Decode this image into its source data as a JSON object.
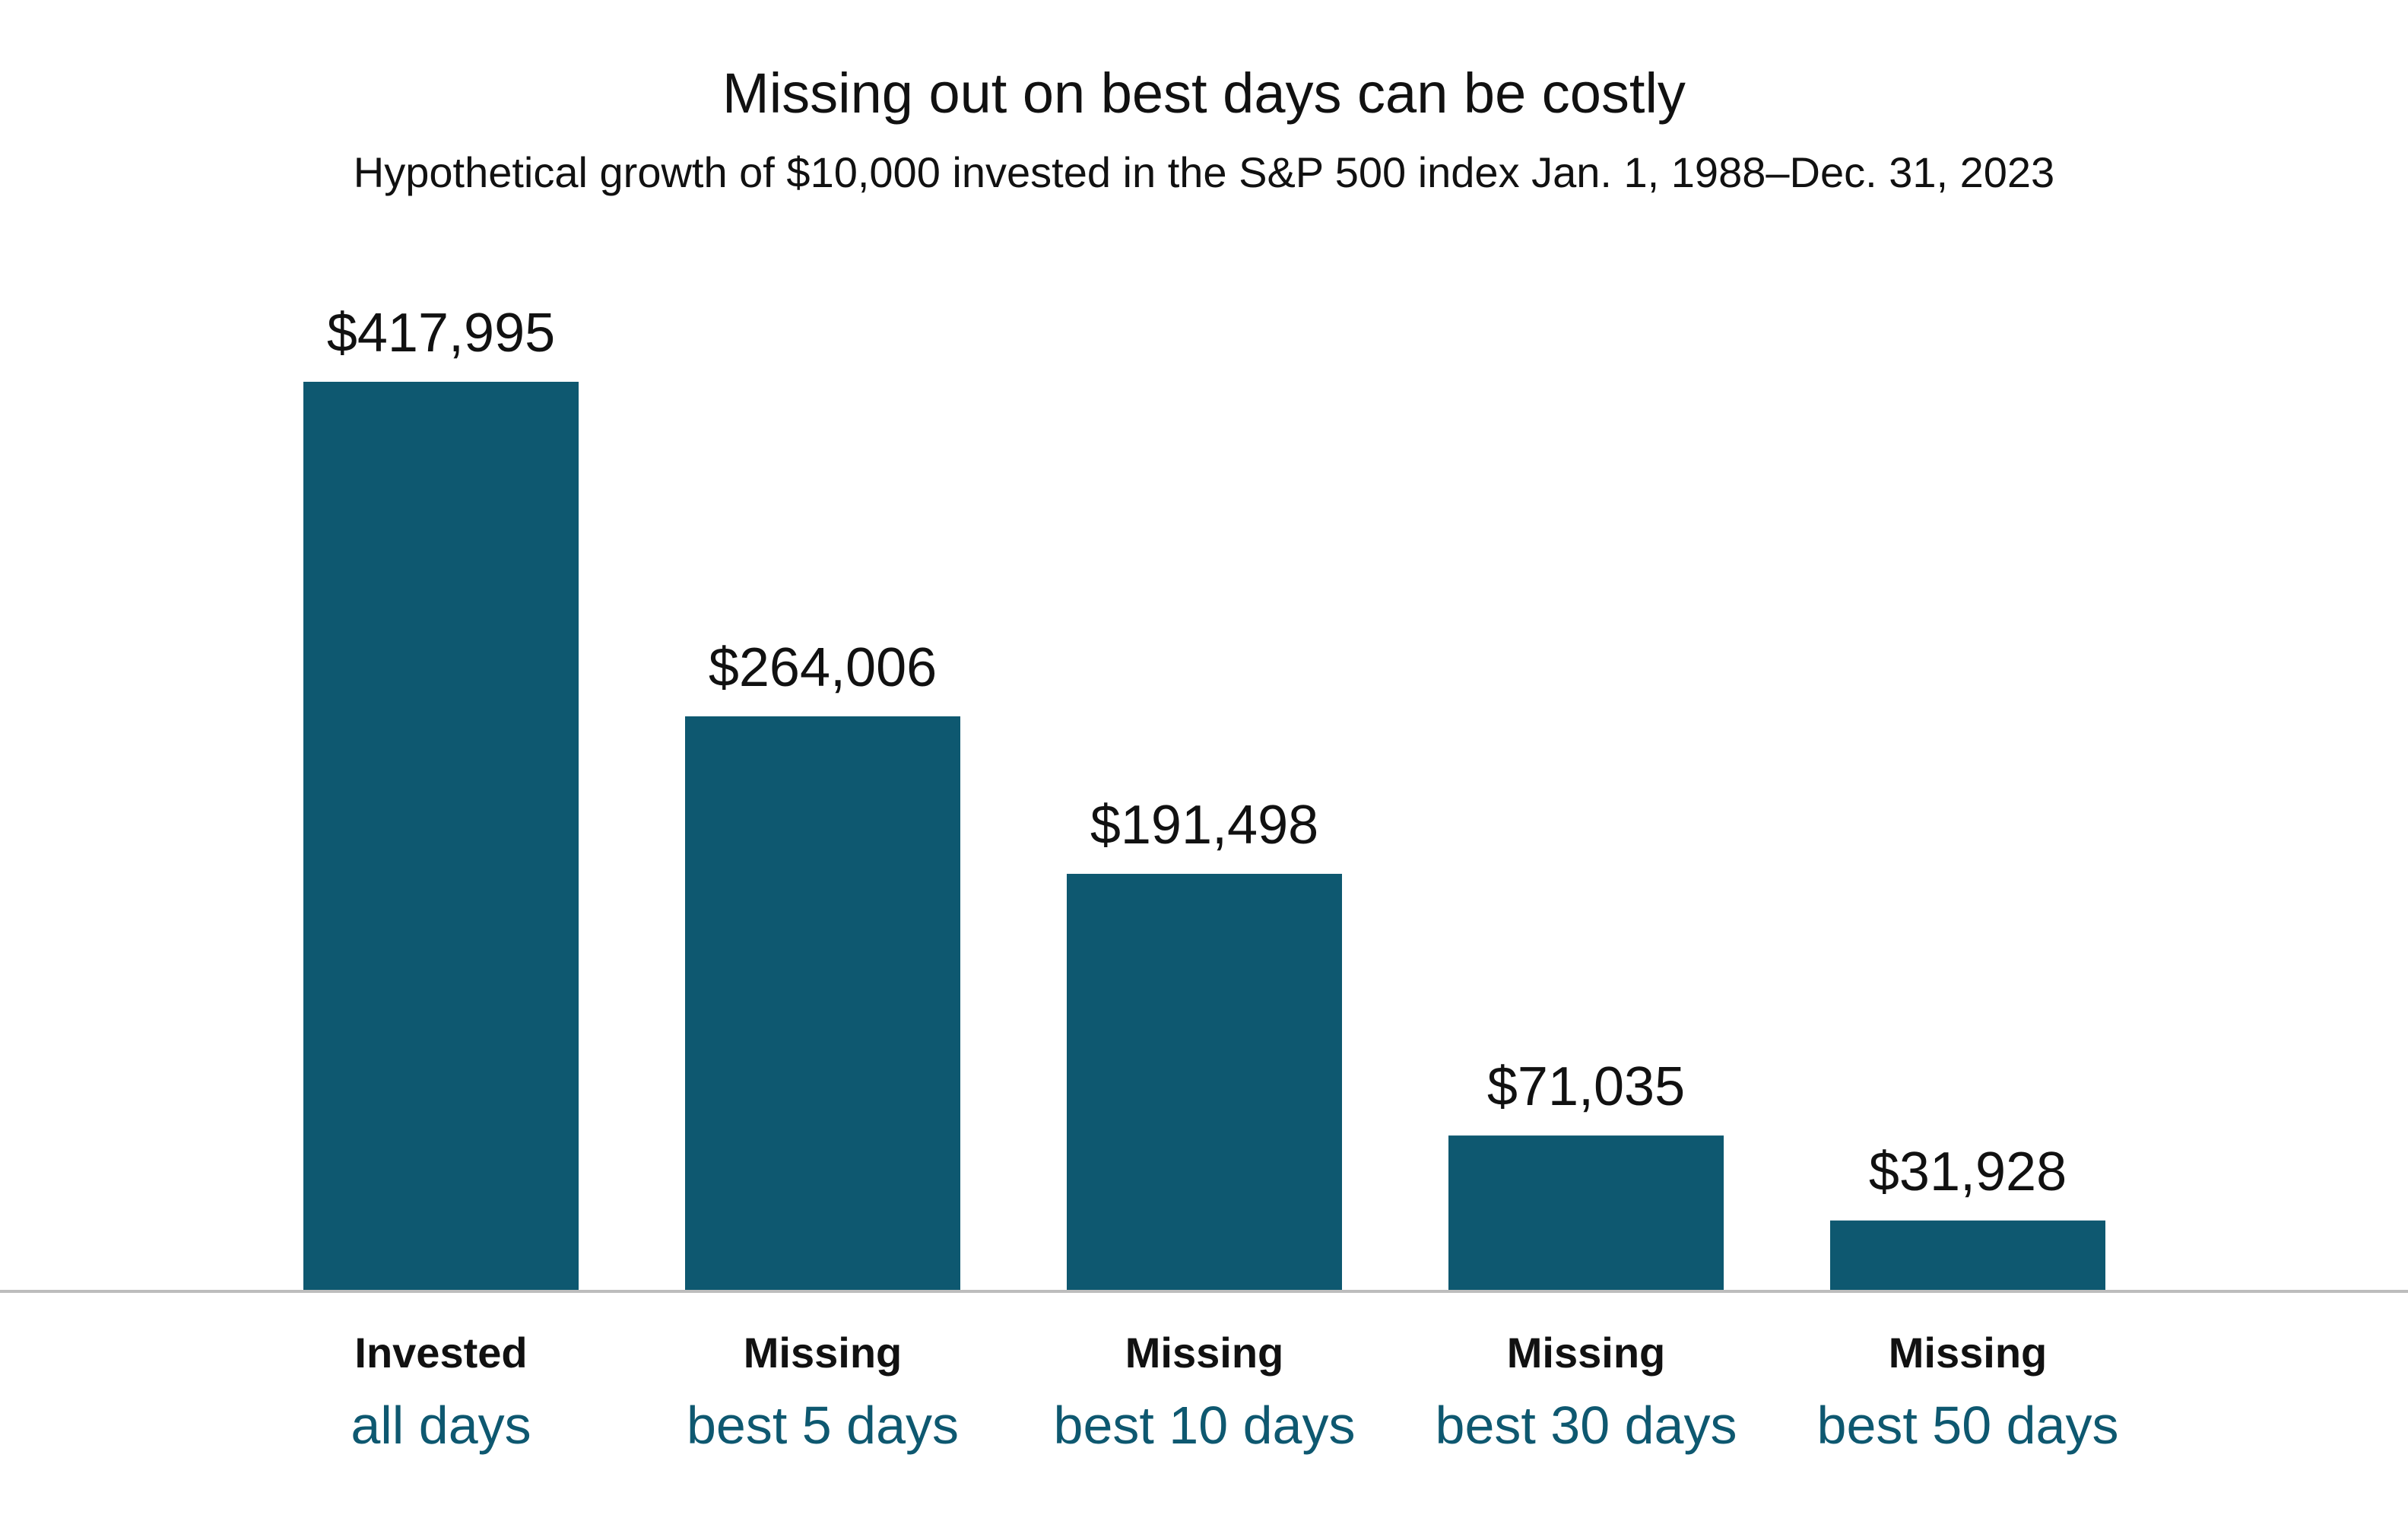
{
  "chart_data": {
    "type": "bar",
    "title": "Missing out on best days can be costly",
    "subtitle": "Hypothetical growth of $10,000 invested in the S&P 500 index Jan. 1, 1988–Dec. 31, 2023",
    "categories": [
      {
        "line1": "Invested",
        "line2": "all days"
      },
      {
        "line1": "Missing",
        "line2": "best 5 days"
      },
      {
        "line1": "Missing",
        "line2": "best 10 days"
      },
      {
        "line1": "Missing",
        "line2": "best 30 days"
      },
      {
        "line1": "Missing",
        "line2": "best 50 days"
      }
    ],
    "values": [
      417995,
      264006,
      191498,
      71035,
      31928
    ],
    "value_labels": [
      "$417,995",
      "$264,006",
      "$191,498",
      "$71,035",
      "$31,928"
    ],
    "xlabel": "",
    "ylabel": "",
    "ylim": [
      0,
      417995
    ],
    "grid": false,
    "legend": "none",
    "bar_color": "#0e5870",
    "category_accent_color": "#0e5870",
    "baseline_color": "#bdbdbd"
  }
}
